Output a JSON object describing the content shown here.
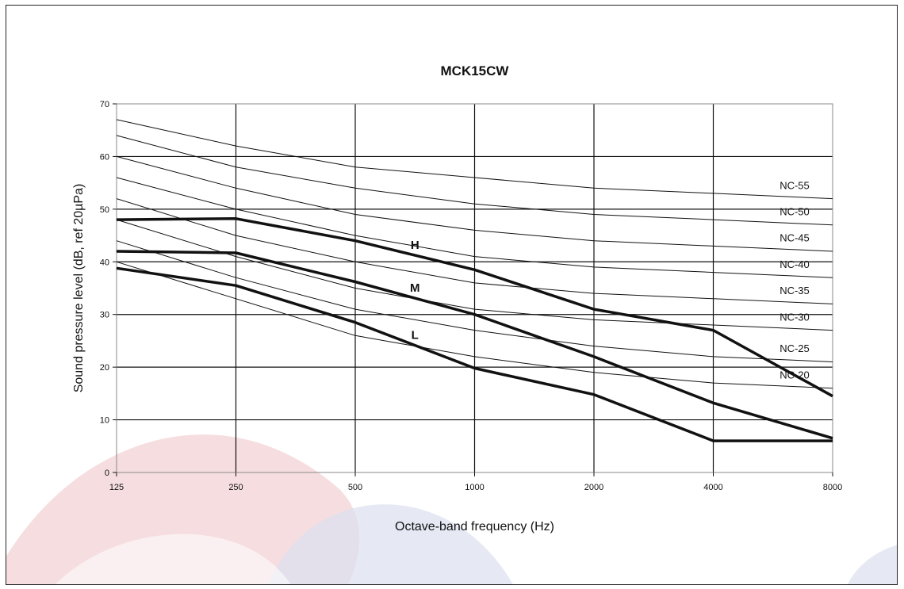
{
  "chart_data": {
    "type": "line",
    "title": "MCK15CW",
    "xlabel": "Octave-band frequency (Hz)",
    "ylabel": "Sound pressure level (dB, ref 20µPa)",
    "x": [
      125,
      250,
      500,
      1000,
      2000,
      4000,
      8000
    ],
    "x_tick_labels": [
      "125",
      "250",
      "500",
      "1000",
      "2000",
      "4000",
      "8000"
    ],
    "x_scale": "log2",
    "ylim": [
      0,
      70
    ],
    "y_ticks": [
      0,
      10,
      20,
      30,
      40,
      50,
      60,
      70
    ],
    "grid": "major-gridlines",
    "series": [
      {
        "name": "H",
        "values": [
          48,
          48.2,
          44,
          38.5,
          31,
          27,
          14.5
        ]
      },
      {
        "name": "M",
        "values": [
          42,
          41.7,
          36.2,
          30,
          22,
          13.2,
          6.5
        ]
      },
      {
        "name": "L",
        "values": [
          38.8,
          35.5,
          28.5,
          19.8,
          14.8,
          6,
          6
        ]
      }
    ],
    "reference_curves": [
      {
        "name": "NC-55",
        "values": [
          67,
          62,
          58,
          56,
          54,
          53,
          52
        ]
      },
      {
        "name": "NC-50",
        "values": [
          64,
          58,
          54,
          51,
          49,
          48,
          47
        ]
      },
      {
        "name": "NC-45",
        "values": [
          60,
          54,
          49,
          46,
          44,
          43,
          42
        ]
      },
      {
        "name": "NC-40",
        "values": [
          56,
          50,
          45,
          41,
          39,
          38,
          37
        ]
      },
      {
        "name": "NC-35",
        "values": [
          52,
          45,
          40,
          36,
          34,
          33,
          32
        ]
      },
      {
        "name": "NC-30",
        "values": [
          48,
          41,
          35,
          31,
          29,
          28,
          27
        ]
      },
      {
        "name": "NC-25",
        "values": [
          44,
          37,
          31,
          27,
          24,
          22,
          21
        ]
      },
      {
        "name": "NC-20",
        "values": [
          40,
          33,
          26,
          22,
          19,
          17,
          16
        ]
      }
    ]
  },
  "colors": {
    "curve": "#111111",
    "reference_curve": "#111111",
    "grid": "#111111",
    "plot_border": "#888888",
    "watermark_red": "#f3d3d6",
    "watermark_blue": "#dcdff0"
  }
}
